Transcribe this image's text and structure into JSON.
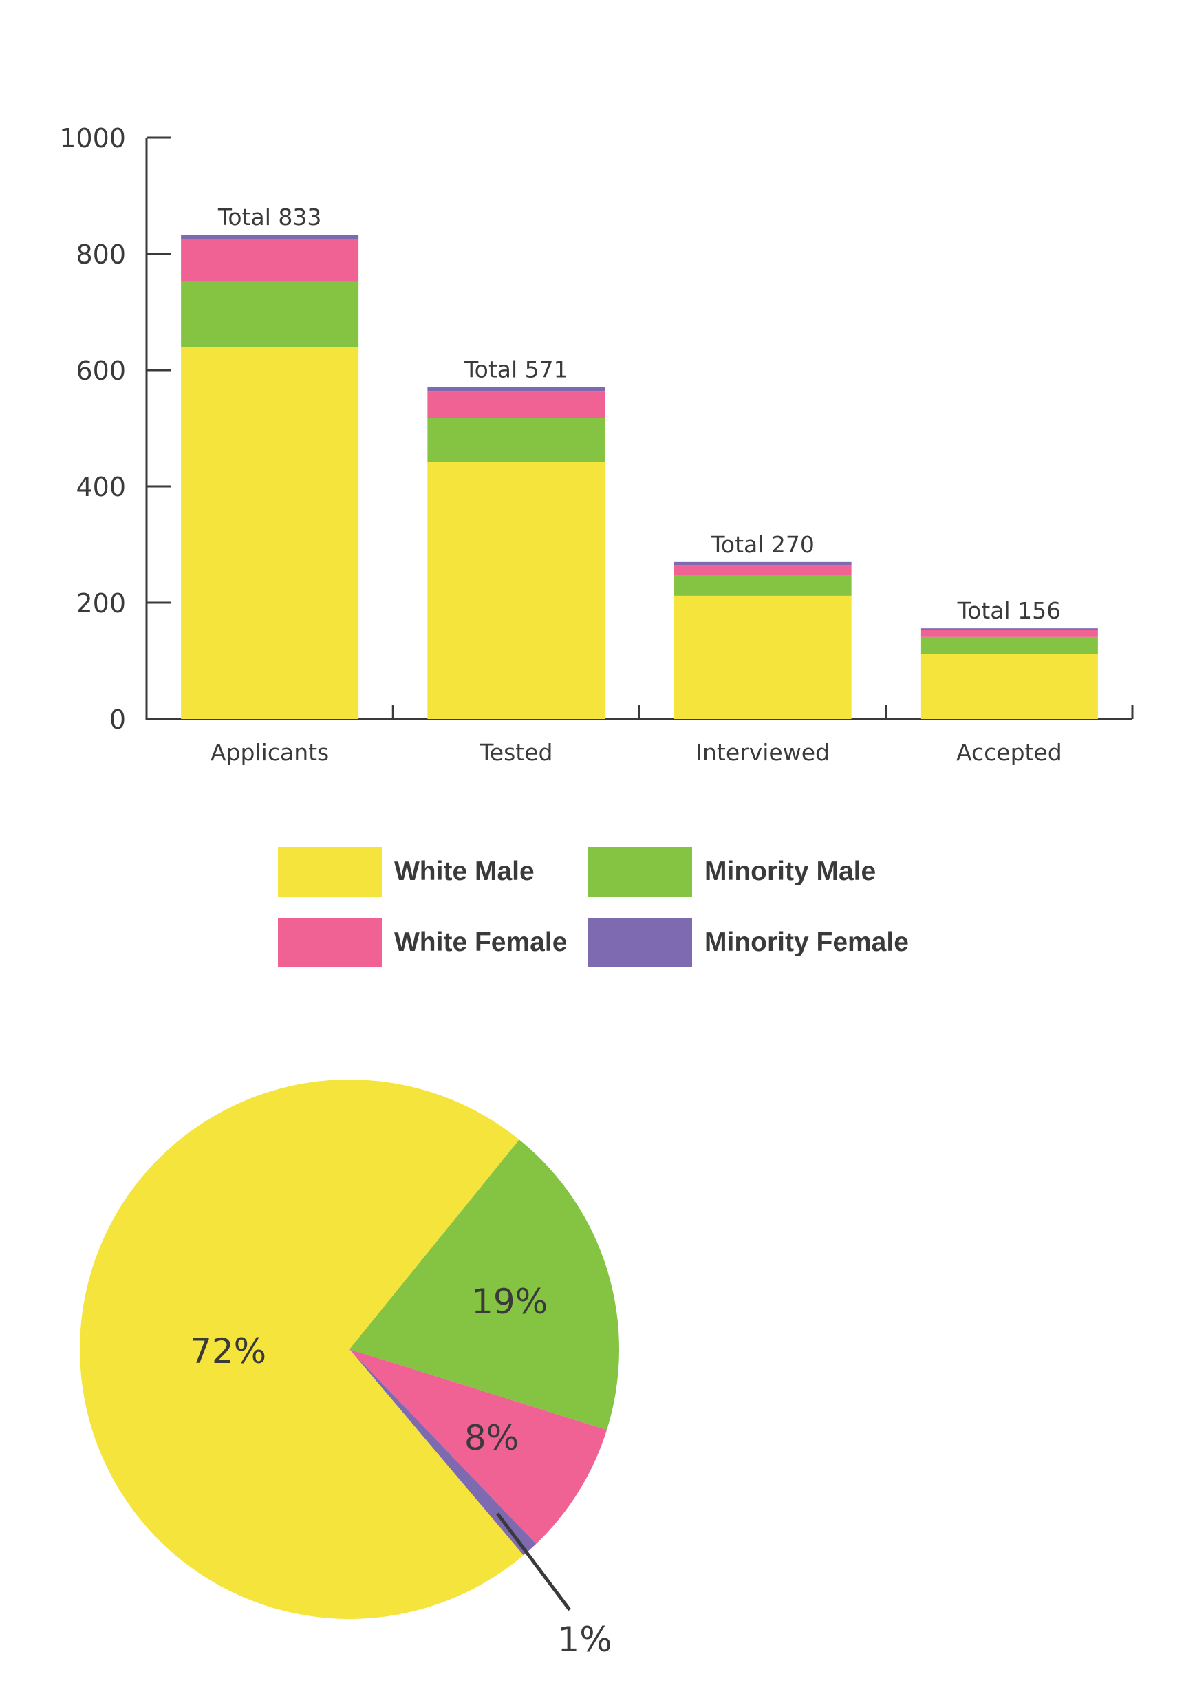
{
  "chart_data": [
    {
      "type": "bar",
      "stacked": true,
      "categories": [
        "Applicants",
        "Tested",
        "Interviewed",
        "Accepted"
      ],
      "series": [
        {
          "name": "White Male",
          "color": "#f4e43c",
          "values": [
            640,
            442,
            212,
            112
          ]
        },
        {
          "name": "Minority Male",
          "color": "#84c442",
          "values": [
            112,
            76,
            36,
            29
          ]
        },
        {
          "name": "White Female",
          "color": "#f06294",
          "values": [
            73,
            45,
            17,
            12
          ]
        },
        {
          "name": "Minority Female",
          "color": "#7e6ab1",
          "values": [
            8,
            8,
            5,
            3
          ]
        }
      ],
      "totals": [
        833,
        571,
        270,
        156
      ],
      "total_labels": [
        "Total 833",
        "Total 571",
        "Total 270",
        "Total 156"
      ],
      "ylim": [
        0,
        1000
      ],
      "yticks": [
        0,
        200,
        400,
        600,
        800,
        1000
      ],
      "grid": false,
      "legend": "bottom"
    },
    {
      "type": "pie",
      "slices": [
        {
          "name": "White Male",
          "value": 72,
          "label": "72%",
          "color": "#f4e43c"
        },
        {
          "name": "Minority Male",
          "value": 19,
          "label": "19%",
          "color": "#84c442"
        },
        {
          "name": "White Female",
          "value": 8,
          "label": "8%",
          "color": "#f06294"
        },
        {
          "name": "Minority Female",
          "value": 1,
          "label": "1%",
          "color": "#7e6ab1"
        }
      ]
    }
  ],
  "legend": {
    "items": [
      {
        "label": "White Male",
        "color": "#f4e43c"
      },
      {
        "label": "Minority Male",
        "color": "#84c442"
      },
      {
        "label": "White Female",
        "color": "#f06294"
      },
      {
        "label": "Minority Female",
        "color": "#7e6ab1"
      }
    ]
  },
  "colors": {
    "axis": "#3a3a3a",
    "text": "#3a3a3a"
  }
}
